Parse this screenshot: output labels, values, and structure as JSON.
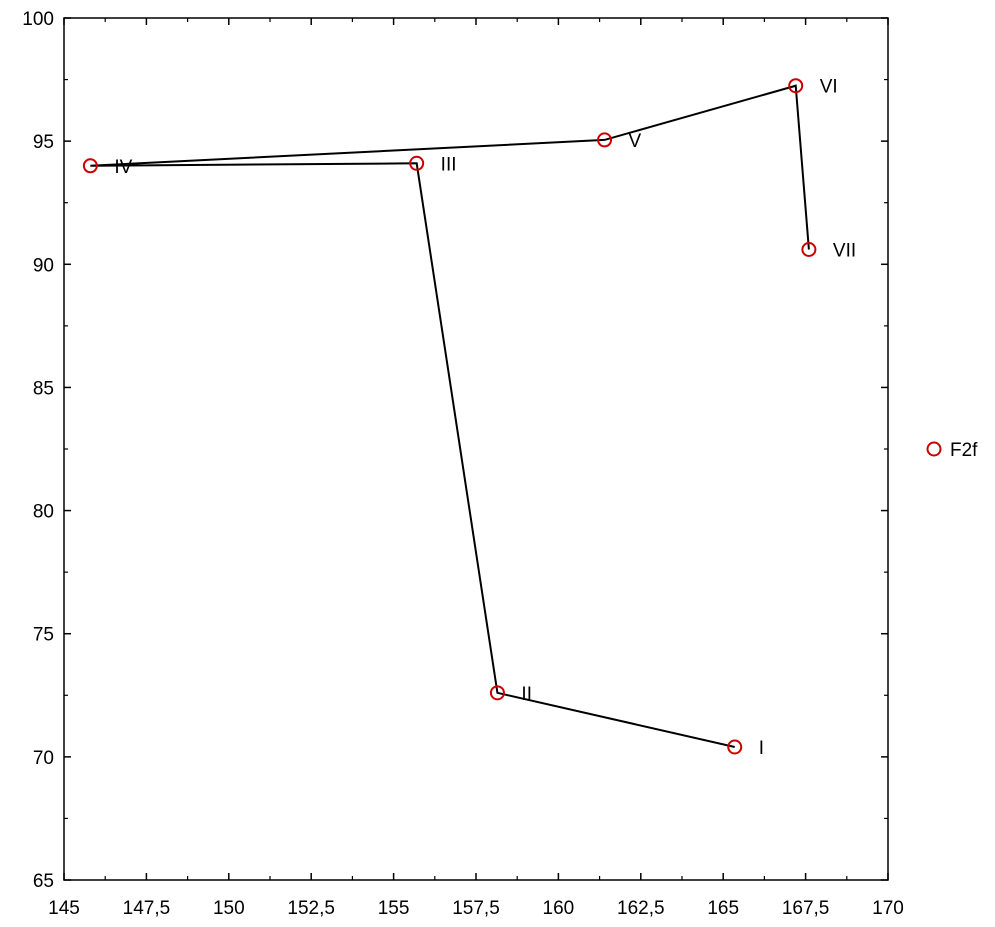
{
  "chart_data": {
    "type": "line",
    "xlim": [
      145,
      170
    ],
    "ylim": [
      65,
      100
    ],
    "x_ticks": [
      145,
      147.5,
      150,
      152.5,
      155,
      157.5,
      160,
      162.5,
      165,
      167.5,
      170
    ],
    "x_tick_labels": [
      "145",
      "147,5",
      "150",
      "152,5",
      "155",
      "157,5",
      "160",
      "162,5",
      "165",
      "167,5",
      "170"
    ],
    "y_ticks": [
      65,
      70,
      75,
      80,
      85,
      90,
      95,
      100
    ],
    "y_tick_labels": [
      "65",
      "70",
      "75",
      "80",
      "85",
      "90",
      "95",
      "100"
    ],
    "grid": false,
    "legend_position": "right",
    "series": [
      {
        "name": "F2f",
        "color": "#cc0000",
        "line_color": "#000000",
        "marker": "open-circle",
        "points": [
          {
            "label": "I",
            "x": 165.35,
            "y": 70.4
          },
          {
            "label": "II",
            "x": 158.15,
            "y": 72.6
          },
          {
            "label": "III",
            "x": 155.7,
            "y": 94.1
          },
          {
            "label": "IV",
            "x": 145.8,
            "y": 94.0
          },
          {
            "label": "V",
            "x": 161.4,
            "y": 95.05
          },
          {
            "label": "VI",
            "x": 167.2,
            "y": 97.25
          },
          {
            "label": "VII",
            "x": 167.6,
            "y": 90.6
          }
        ]
      }
    ]
  }
}
